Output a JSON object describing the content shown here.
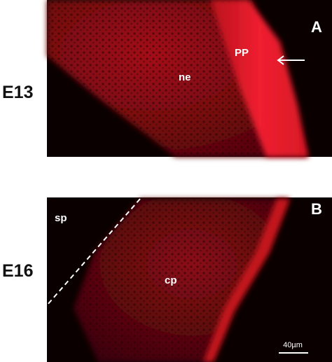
{
  "row_labels": [
    "E13",
    "E16"
  ],
  "panels": [
    {
      "letter": "A",
      "labels": [
        "PP",
        "ne"
      ]
    },
    {
      "letter": "B",
      "labels": [
        "sp",
        "cp"
      ],
      "scale_bar": "40µm"
    }
  ]
}
